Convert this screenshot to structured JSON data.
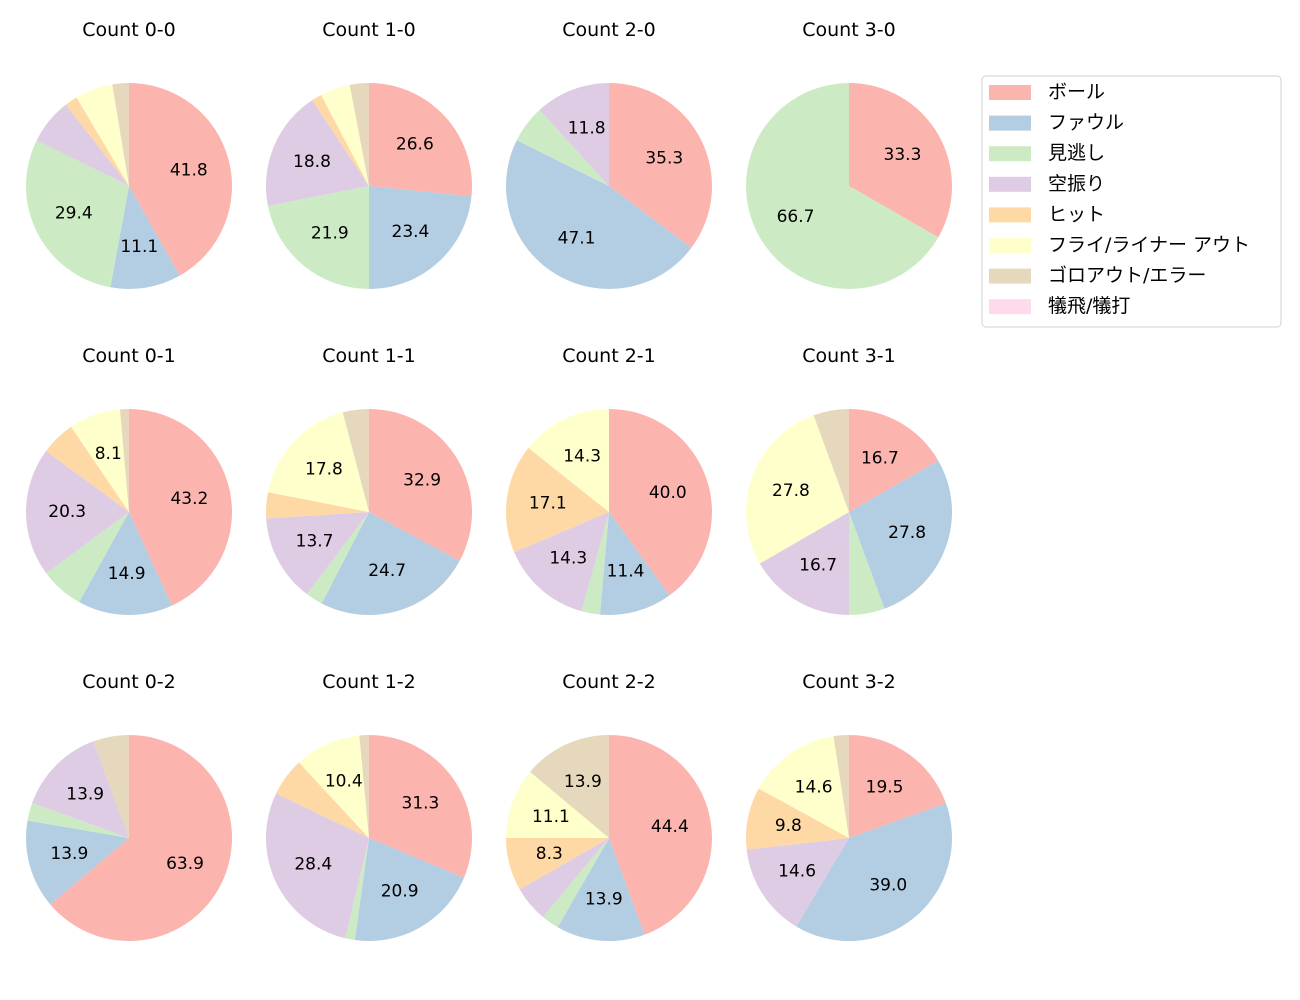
{
  "chart_data": {
    "type": "pie",
    "categories": [
      "ボール",
      "ファウル",
      "見逃し",
      "空振り",
      "ヒット",
      "フライ/ライナー アウト",
      "ゴロアウト/エラー",
      "犠飛/犠打"
    ],
    "colors": [
      "#fbb4ae",
      "#b3cde3",
      "#ccebc5",
      "#decbe4",
      "#fed9a6",
      "#ffffcc",
      "#e5d8bd",
      "#fddaec"
    ],
    "start_angle": "top",
    "direction": "clockwise",
    "legend_placement": "top-right",
    "pies": [
      {
        "title": "Count 0-0",
        "values": [
          41.8,
          11.1,
          29.4,
          7.2,
          2.0,
          5.9,
          2.6,
          0
        ]
      },
      {
        "title": "Count 1-0",
        "values": [
          26.6,
          23.4,
          21.9,
          18.8,
          1.6,
          4.7,
          3.0,
          0
        ]
      },
      {
        "title": "Count 2-0",
        "values": [
          35.3,
          47.1,
          5.9,
          11.8,
          0,
          0,
          0,
          0
        ]
      },
      {
        "title": "Count 3-0",
        "values": [
          33.3,
          0,
          66.7,
          0,
          0,
          0,
          0,
          0
        ]
      },
      {
        "title": "Count 0-1",
        "values": [
          43.2,
          14.9,
          6.8,
          20.3,
          5.4,
          8.1,
          1.4,
          0
        ]
      },
      {
        "title": "Count 1-1",
        "values": [
          32.9,
          24.7,
          2.7,
          13.7,
          4.1,
          17.8,
          4.1,
          0
        ]
      },
      {
        "title": "Count 2-1",
        "values": [
          40.0,
          11.4,
          2.9,
          14.3,
          17.1,
          14.3,
          0,
          0
        ]
      },
      {
        "title": "Count 3-1",
        "values": [
          16.7,
          27.8,
          5.6,
          16.7,
          0,
          27.8,
          5.6,
          0
        ]
      },
      {
        "title": "Count 0-2",
        "values": [
          63.9,
          13.9,
          2.8,
          13.9,
          0,
          0,
          5.6,
          0
        ]
      },
      {
        "title": "Count 1-2",
        "values": [
          31.3,
          20.9,
          1.5,
          28.4,
          6.0,
          10.4,
          1.5,
          0
        ]
      },
      {
        "title": "Count 2-2",
        "values": [
          44.4,
          13.9,
          2.8,
          5.6,
          8.3,
          11.1,
          13.9,
          0
        ]
      },
      {
        "title": "Count 3-2",
        "values": [
          19.5,
          39.0,
          0,
          14.6,
          9.8,
          14.6,
          2.4,
          0
        ]
      }
    ]
  }
}
